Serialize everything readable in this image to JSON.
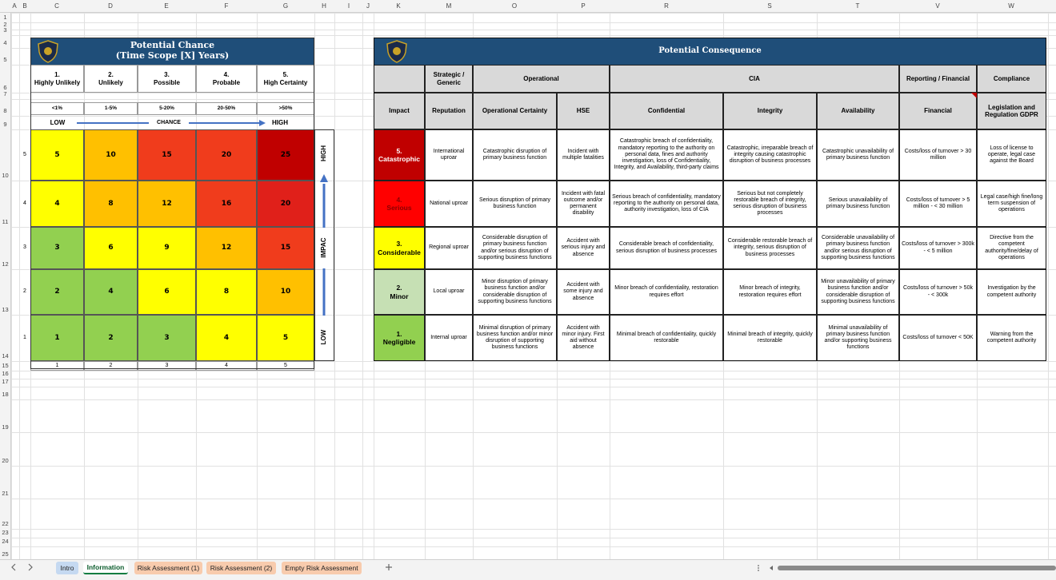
{
  "sheet": {
    "column_headers": [
      "A",
      "B",
      "C",
      "D",
      "E",
      "F",
      "G",
      "H",
      "I",
      "J",
      "K",
      "M",
      "O",
      "P",
      "R",
      "S",
      "T",
      "V",
      "W"
    ],
    "row_numbers": [
      1,
      2,
      3,
      4,
      5,
      6,
      7,
      8,
      9,
      10,
      11,
      12,
      13,
      14,
      15,
      16,
      17,
      18,
      19,
      20,
      21,
      22,
      23,
      24,
      25
    ]
  },
  "chance_matrix": {
    "title": "Potential Chance",
    "subtitle": "(Time Scope [X] Years)",
    "levels": [
      {
        "number": "1.",
        "label": "Highly Unlikely",
        "range": "<1%"
      },
      {
        "number": "2.",
        "label": "Unlikely",
        "range": "1-5%"
      },
      {
        "number": "3.",
        "label": "Possible",
        "range": "5-20%"
      },
      {
        "number": "4.",
        "label": "Probable",
        "range": "20-50%"
      },
      {
        "number": "5.",
        "label": "High Certainty",
        "range": ">50%"
      }
    ],
    "chance_axis": {
      "low": "LOW",
      "label": "CHANCE",
      "high": "HIGH"
    },
    "impact_axis": {
      "high": "HIGH",
      "label": "IMPAC",
      "low": "LOW"
    },
    "rows": [
      {
        "impact": 5,
        "values": [
          5,
          10,
          15,
          20,
          25
        ],
        "colors": [
          "#ffff00",
          "#ffc000",
          "#f03c1c",
          "#f03c1c",
          "#c00000"
        ]
      },
      {
        "impact": 4,
        "values": [
          4,
          8,
          12,
          16,
          20
        ],
        "colors": [
          "#ffff00",
          "#ffc000",
          "#ffc000",
          "#f03c1c",
          "#e0201a"
        ]
      },
      {
        "impact": 3,
        "values": [
          3,
          6,
          9,
          12,
          15
        ],
        "colors": [
          "#92d050",
          "#ffff00",
          "#ffff00",
          "#ffc000",
          "#f03c1c"
        ]
      },
      {
        "impact": 2,
        "values": [
          2,
          4,
          6,
          8,
          10
        ],
        "colors": [
          "#92d050",
          "#92d050",
          "#ffff00",
          "#ffff00",
          "#ffc000"
        ]
      },
      {
        "impact": 1,
        "values": [
          1,
          2,
          3,
          4,
          5
        ],
        "colors": [
          "#92d050",
          "#92d050",
          "#92d050",
          "#ffff00",
          "#ffff00"
        ]
      }
    ],
    "chance_numbers": [
      1,
      2,
      3,
      4,
      5
    ]
  },
  "consequence_table": {
    "title": "Potential Consequence",
    "groups": [
      "Strategic / Generic",
      "Operational",
      "CIA",
      "Reporting / Financial",
      "Compliance"
    ],
    "columns": [
      "Impact",
      "Reputation",
      "Operational Certainty",
      "HSE",
      "Confidential",
      "Integrity",
      "Availability",
      "Financial",
      "Legislation and Regulation GDPR"
    ],
    "rows": [
      {
        "number": "5.",
        "label": "Catastrophic",
        "color": "#c00000",
        "text_color": "#ffffff",
        "cells": [
          "International uproar",
          "Catastrophic disruption of primary business function",
          "Incident with multiple fatalities",
          "Catastrophic breach of confidentiality, mandatory reporting to the authority on personal data, fines and authority investigation, loss of Confidentiality, Integrity, and Availability, third-party claims",
          "Catastrophic, irreparable breach of integrity causing catastrophic disruption of business processes",
          "Catastrophic unavailability of primary business function",
          "Costs/loss of turnover > 30 million",
          "Loss of license to operate, legal case against the Board"
        ]
      },
      {
        "number": "4.",
        "label": "Serious",
        "color": "#ff0000",
        "text_color": "#8b0000",
        "cells": [
          "National uproar",
          "Serious disruption of primary business function",
          "Incident with fatal outcome and/or permanent disability",
          "Serious breach of confidentiality, mandatory reporting to the authority on personal data, authority investigation, loss of CIA",
          "Serious but not completely restorable breach of integrity, serious disruption of business processes",
          "Serious unavailability of primary business function",
          "Costs/loss of turnover > 5 million - < 30 million",
          "Legal case/high fine/long term suspension of operations"
        ]
      },
      {
        "number": "3.",
        "label": "Considerable",
        "color": "#ffff00",
        "text_color": "#000000",
        "cells": [
          "Regional uproar",
          "Considerable disruption of primary business function and/or serious disruption of supporting business functions",
          "Accident with serious injury and absence",
          "Considerable breach of confidentiality, serious disruption of business processes",
          "Considerable restorable breach of integrity, serious disruption of business processes",
          "Considerable unavailability of primary business function and/or serious disruption of supporting business functions",
          "Costs/loss of turnover > 300k - < 5 million",
          "Directive from the competent authority/fine/delay of operations"
        ]
      },
      {
        "number": "2.",
        "label": "Minor",
        "color": "#c6e0b4",
        "text_color": "#000000",
        "cells": [
          "Local uproar",
          "Minor disruption of primary business function and/or considerable disruption of supporting business functions",
          "Accident with some injury and absence",
          "Minor breach of confidentiality, restoration requires effort",
          "Minor breach of integrity, restoration requires effort",
          "Minor unavailability of primary business function and/or considerable disruption of supporting business functions",
          "Costs/loss of turnover > 50k - < 300k",
          "Investigation by the competent authority"
        ]
      },
      {
        "number": "1.",
        "label": "Negligible",
        "color": "#92d050",
        "text_color": "#000000",
        "cells": [
          "Internal uproar",
          "Minimal disruption of primary business function and/or minor disruption of supporting business functions",
          "Accident with minor injury. First aid without absence",
          "Minimal breach of confidentiality, quickly restorable",
          "Minimal breach of integrity, quickly restorable",
          "Minimal unavailability of primary business function and/or supporting business functions",
          "Costs/loss of turnover < 50K",
          "Warning from the competent authority"
        ]
      }
    ]
  },
  "tabs": [
    {
      "label": "Intro",
      "color": "#c5d9f1",
      "active": false
    },
    {
      "label": "Information",
      "color": "#ffffff",
      "active": true
    },
    {
      "label": "Risk Assessment (1)",
      "color": "#f8cbad",
      "active": false
    },
    {
      "label": "Risk Assessment (2)",
      "color": "#f8cbad",
      "active": false
    },
    {
      "label": "Empty Risk Assessment",
      "color": "#f8cbad",
      "active": false
    }
  ]
}
